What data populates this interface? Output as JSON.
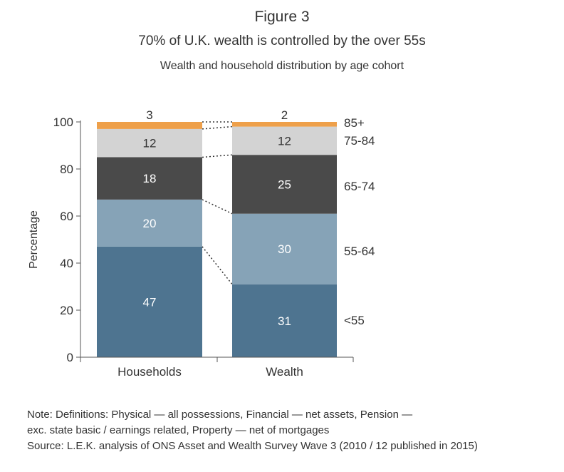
{
  "figure_label": "Figure 3",
  "title": "70% of U.K. wealth is controlled by the over 55s",
  "subtitle": "Wealth and household distribution by age cohort",
  "notes": [
    "Note: Definitions: Physical — all possessions, Financial — net assets, Pension —",
    "exc. state basic / earnings related, Property — net of mortgages",
    "Source: L.E.K. analysis of ONS Asset and Wealth Survey Wave 3 (2010 / 12 published in 2015)"
  ],
  "chart_data": {
    "type": "bar",
    "stacked": true,
    "title": "70% of U.K. wealth is controlled by the over 55s",
    "subtitle": "Wealth and household distribution by age cohort",
    "xlabel": "",
    "ylabel": "Percentage",
    "ylim": [
      0,
      100
    ],
    "yticks": [
      0,
      20,
      40,
      60,
      80,
      100
    ],
    "categories": [
      "Households",
      "Wealth"
    ],
    "series": [
      {
        "name": "<55",
        "values": [
          47,
          31
        ],
        "color": "#4e7490"
      },
      {
        "name": "55-64",
        "values": [
          20,
          30
        ],
        "color": "#86a3b7"
      },
      {
        "name": "65-74",
        "values": [
          18,
          25
        ],
        "color": "#4a4a4a"
      },
      {
        "name": "75-84",
        "values": [
          12,
          12
        ],
        "color": "#d3d3d3"
      },
      {
        "name": "85+",
        "values": [
          3,
          2
        ],
        "color": "#eea04a"
      }
    ],
    "grid": false,
    "legend": "right"
  }
}
